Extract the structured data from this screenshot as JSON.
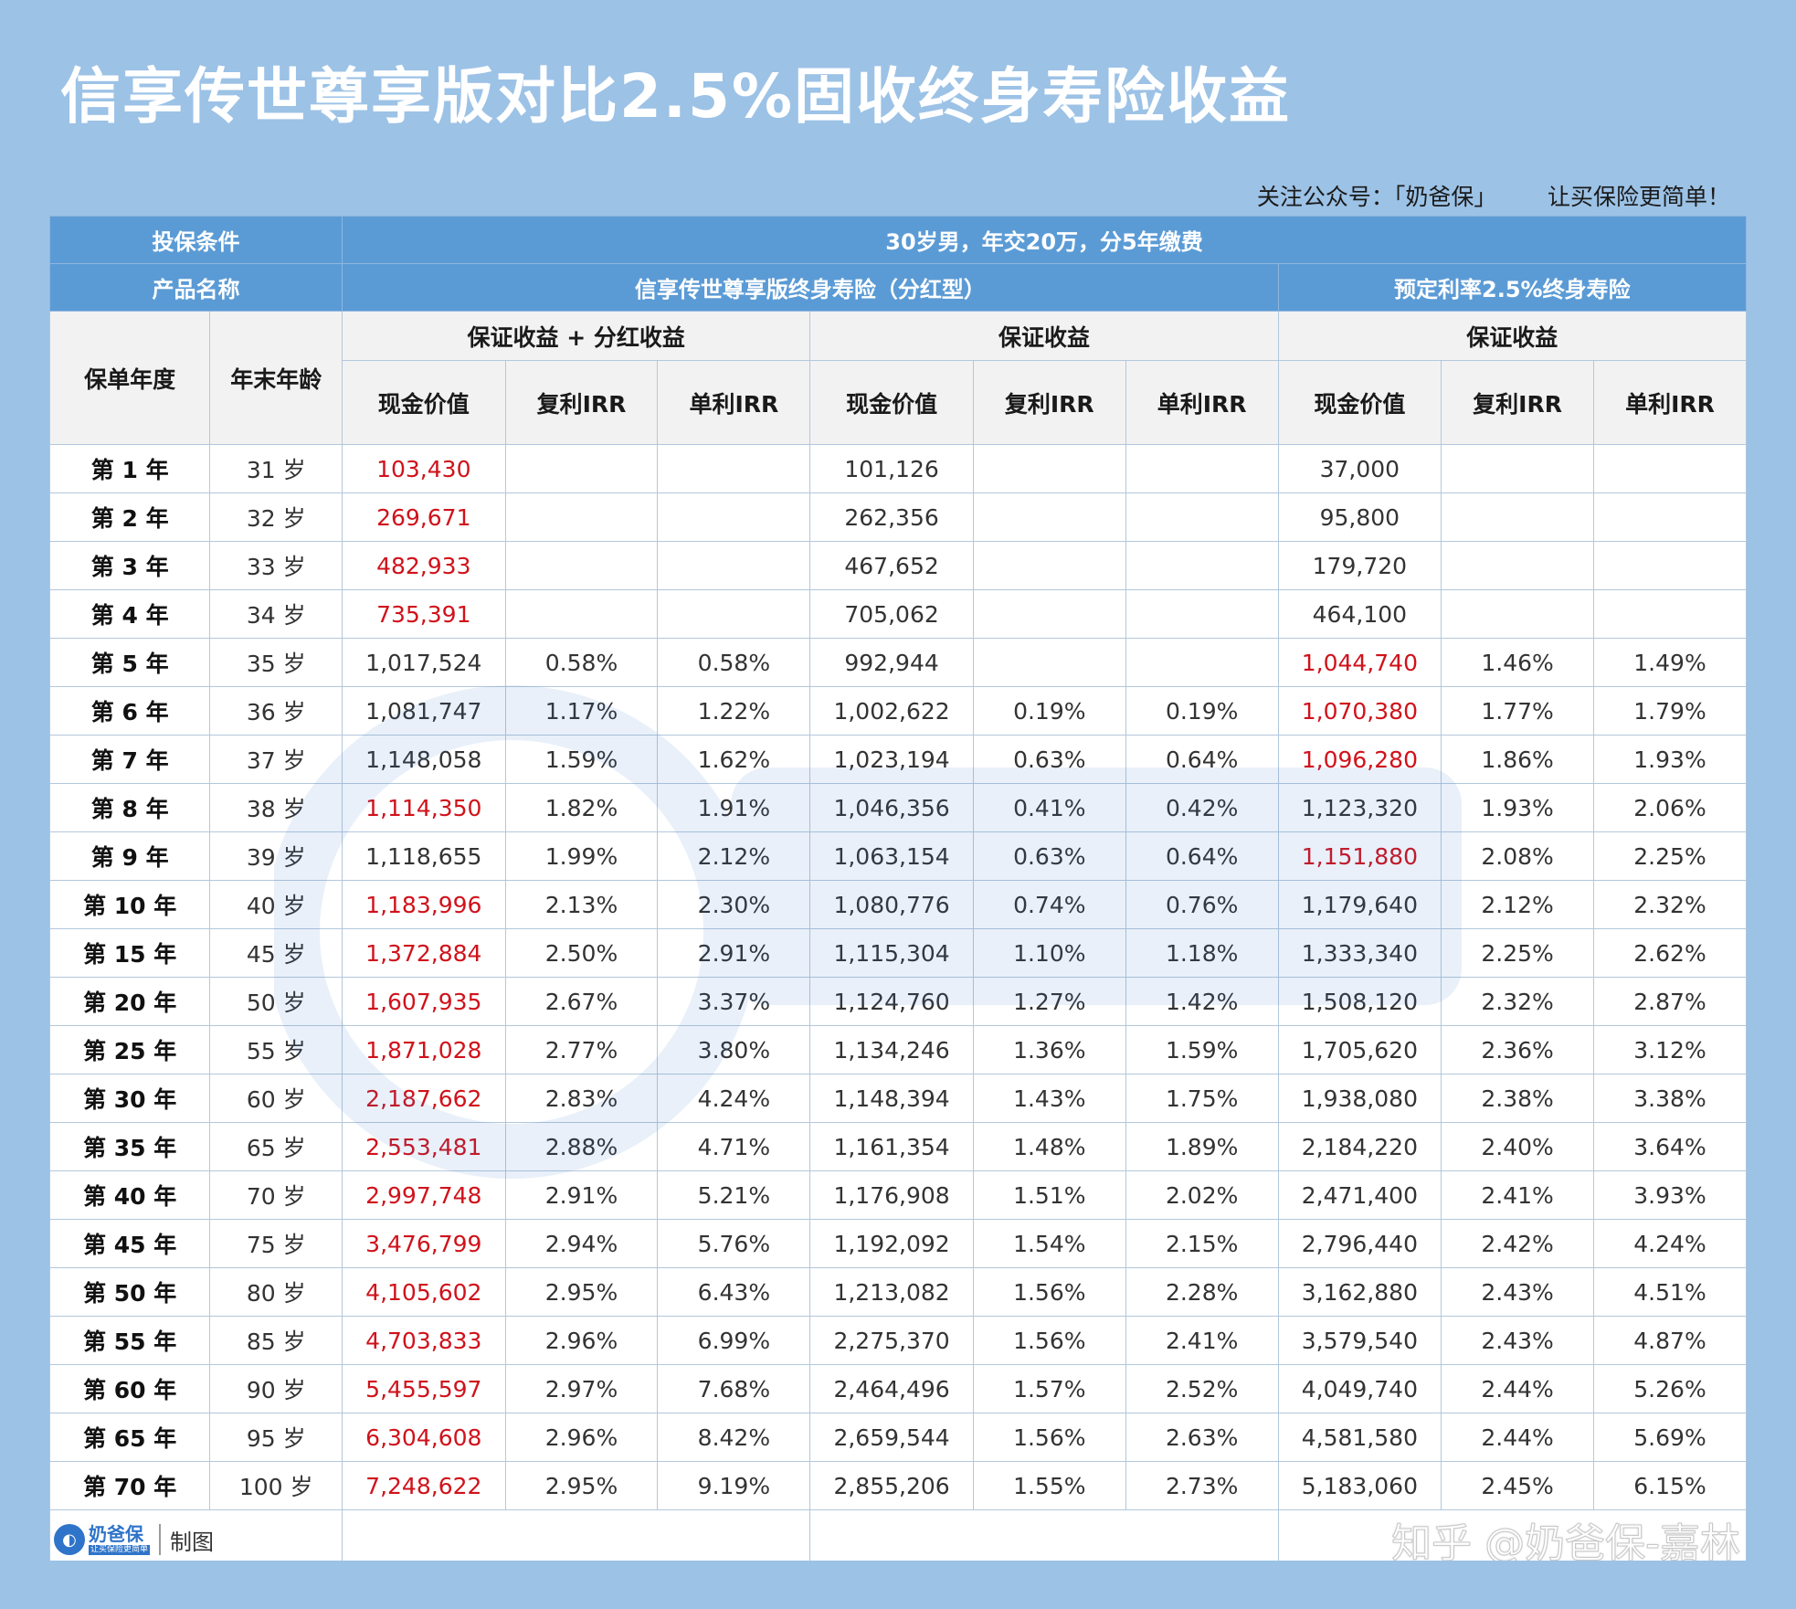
{
  "title": "信享传世尊享版对比2.5%固收终身寿险收益",
  "follow_text": "关注公众号：「奶爸保」       让买保险更简单！",
  "header": {
    "condition_label": "投保条件",
    "condition_value": "30岁男，年交20万，分5年缴费",
    "product_label": "产品名称",
    "product_a": "信享传世尊享版终身寿险（分红型）",
    "product_b": "预定利率2.5%终身寿险",
    "year_label": "保单年度",
    "age_label": "年末年龄",
    "group_a1": "保证收益 + 分红收益",
    "group_a2": "保证收益",
    "group_b": "保证收益",
    "cash_value": "现金价值",
    "compound_irr": "复利IRR",
    "simple_irr": "单利IRR"
  },
  "rows": [
    {
      "year": "第 1 年",
      "age": "31 岁",
      "a_cv": "103,430",
      "a_cv_red": true,
      "a_cirr": "",
      "a_sirr": "",
      "g_cv": "101,126",
      "g_cirr": "",
      "g_sirr": "",
      "b_cv": "37,000",
      "b_cv_red": false,
      "b_cirr": "",
      "b_sirr": ""
    },
    {
      "year": "第 2 年",
      "age": "32 岁",
      "a_cv": "269,671",
      "a_cv_red": true,
      "a_cirr": "",
      "a_sirr": "",
      "g_cv": "262,356",
      "g_cirr": "",
      "g_sirr": "",
      "b_cv": "95,800",
      "b_cv_red": false,
      "b_cirr": "",
      "b_sirr": ""
    },
    {
      "year": "第 3 年",
      "age": "33 岁",
      "a_cv": "482,933",
      "a_cv_red": true,
      "a_cirr": "",
      "a_sirr": "",
      "g_cv": "467,652",
      "g_cirr": "",
      "g_sirr": "",
      "b_cv": "179,720",
      "b_cv_red": false,
      "b_cirr": "",
      "b_sirr": ""
    },
    {
      "year": "第 4 年",
      "age": "34 岁",
      "a_cv": "735,391",
      "a_cv_red": true,
      "a_cirr": "",
      "a_sirr": "",
      "g_cv": "705,062",
      "g_cirr": "",
      "g_sirr": "",
      "b_cv": "464,100",
      "b_cv_red": false,
      "b_cirr": "",
      "b_sirr": ""
    },
    {
      "year": "第 5 年",
      "age": "35 岁",
      "a_cv": "1,017,524",
      "a_cv_red": false,
      "a_cirr": "0.58%",
      "a_sirr": "0.58%",
      "g_cv": "992,944",
      "g_cirr": "",
      "g_sirr": "",
      "b_cv": "1,044,740",
      "b_cv_red": true,
      "b_cirr": "1.46%",
      "b_sirr": "1.49%"
    },
    {
      "year": "第 6 年",
      "age": "36 岁",
      "a_cv": "1,081,747",
      "a_cv_red": false,
      "a_cirr": "1.17%",
      "a_sirr": "1.22%",
      "g_cv": "1,002,622",
      "g_cirr": "0.19%",
      "g_sirr": "0.19%",
      "b_cv": "1,070,380",
      "b_cv_red": true,
      "b_cirr": "1.77%",
      "b_sirr": "1.79%"
    },
    {
      "year": "第 7 年",
      "age": "37 岁",
      "a_cv": "1,148,058",
      "a_cv_red": false,
      "a_cirr": "1.59%",
      "a_sirr": "1.62%",
      "g_cv": "1,023,194",
      "g_cirr": "0.63%",
      "g_sirr": "0.64%",
      "b_cv": "1,096,280",
      "b_cv_red": true,
      "b_cirr": "1.86%",
      "b_sirr": "1.93%"
    },
    {
      "year": "第 8 年",
      "age": "38 岁",
      "a_cv": "1,114,350",
      "a_cv_red": true,
      "a_cirr": "1.82%",
      "a_sirr": "1.91%",
      "g_cv": "1,046,356",
      "g_cirr": "0.41%",
      "g_sirr": "0.42%",
      "b_cv": "1,123,320",
      "b_cv_red": false,
      "b_cirr": "1.93%",
      "b_sirr": "2.06%"
    },
    {
      "year": "第 9 年",
      "age": "39 岁",
      "a_cv": "1,118,655",
      "a_cv_red": false,
      "a_cirr": "1.99%",
      "a_sirr": "2.12%",
      "g_cv": "1,063,154",
      "g_cirr": "0.63%",
      "g_sirr": "0.64%",
      "b_cv": "1,151,880",
      "b_cv_red": true,
      "b_cirr": "2.08%",
      "b_sirr": "2.25%"
    },
    {
      "year": "第 10 年",
      "age": "40 岁",
      "a_cv": "1,183,996",
      "a_cv_red": true,
      "a_cirr": "2.13%",
      "a_sirr": "2.30%",
      "g_cv": "1,080,776",
      "g_cirr": "0.74%",
      "g_sirr": "0.76%",
      "b_cv": "1,179,640",
      "b_cv_red": false,
      "b_cirr": "2.12%",
      "b_sirr": "2.32%"
    },
    {
      "year": "第 15 年",
      "age": "45 岁",
      "a_cv": "1,372,884",
      "a_cv_red": true,
      "a_cirr": "2.50%",
      "a_sirr": "2.91%",
      "g_cv": "1,115,304",
      "g_cirr": "1.10%",
      "g_sirr": "1.18%",
      "b_cv": "1,333,340",
      "b_cv_red": false,
      "b_cirr": "2.25%",
      "b_sirr": "2.62%"
    },
    {
      "year": "第 20 年",
      "age": "50 岁",
      "a_cv": "1,607,935",
      "a_cv_red": true,
      "a_cirr": "2.67%",
      "a_sirr": "3.37%",
      "g_cv": "1,124,760",
      "g_cirr": "1.27%",
      "g_sirr": "1.42%",
      "b_cv": "1,508,120",
      "b_cv_red": false,
      "b_cirr": "2.32%",
      "b_sirr": "2.87%"
    },
    {
      "year": "第 25 年",
      "age": "55 岁",
      "a_cv": "1,871,028",
      "a_cv_red": true,
      "a_cirr": "2.77%",
      "a_sirr": "3.80%",
      "g_cv": "1,134,246",
      "g_cirr": "1.36%",
      "g_sirr": "1.59%",
      "b_cv": "1,705,620",
      "b_cv_red": false,
      "b_cirr": "2.36%",
      "b_sirr": "3.12%"
    },
    {
      "year": "第 30 年",
      "age": "60 岁",
      "a_cv": "2,187,662",
      "a_cv_red": true,
      "a_cirr": "2.83%",
      "a_sirr": "4.24%",
      "g_cv": "1,148,394",
      "g_cirr": "1.43%",
      "g_sirr": "1.75%",
      "b_cv": "1,938,080",
      "b_cv_red": false,
      "b_cirr": "2.38%",
      "b_sirr": "3.38%"
    },
    {
      "year": "第 35 年",
      "age": "65 岁",
      "a_cv": "2,553,481",
      "a_cv_red": true,
      "a_cirr": "2.88%",
      "a_sirr": "4.71%",
      "g_cv": "1,161,354",
      "g_cirr": "1.48%",
      "g_sirr": "1.89%",
      "b_cv": "2,184,220",
      "b_cv_red": false,
      "b_cirr": "2.40%",
      "b_sirr": "3.64%"
    },
    {
      "year": "第 40 年",
      "age": "70 岁",
      "a_cv": "2,997,748",
      "a_cv_red": true,
      "a_cirr": "2.91%",
      "a_sirr": "5.21%",
      "g_cv": "1,176,908",
      "g_cirr": "1.51%",
      "g_sirr": "2.02%",
      "b_cv": "2,471,400",
      "b_cv_red": false,
      "b_cirr": "2.41%",
      "b_sirr": "3.93%"
    },
    {
      "year": "第 45 年",
      "age": "75 岁",
      "a_cv": "3,476,799",
      "a_cv_red": true,
      "a_cirr": "2.94%",
      "a_sirr": "5.76%",
      "g_cv": "1,192,092",
      "g_cirr": "1.54%",
      "g_sirr": "2.15%",
      "b_cv": "2,796,440",
      "b_cv_red": false,
      "b_cirr": "2.42%",
      "b_sirr": "4.24%"
    },
    {
      "year": "第 50 年",
      "age": "80 岁",
      "a_cv": "4,105,602",
      "a_cv_red": true,
      "a_cirr": "2.95%",
      "a_sirr": "6.43%",
      "g_cv": "1,213,082",
      "g_cirr": "1.56%",
      "g_sirr": "2.28%",
      "b_cv": "3,162,880",
      "b_cv_red": false,
      "b_cirr": "2.43%",
      "b_sirr": "4.51%"
    },
    {
      "year": "第 55 年",
      "age": "85 岁",
      "a_cv": "4,703,833",
      "a_cv_red": true,
      "a_cirr": "2.96%",
      "a_sirr": "6.99%",
      "g_cv": "2,275,370",
      "g_cirr": "1.56%",
      "g_sirr": "2.41%",
      "b_cv": "3,579,540",
      "b_cv_red": false,
      "b_cirr": "2.43%",
      "b_sirr": "4.87%"
    },
    {
      "year": "第 60 年",
      "age": "90 岁",
      "a_cv": "5,455,597",
      "a_cv_red": true,
      "a_cirr": "2.97%",
      "a_sirr": "7.68%",
      "g_cv": "2,464,496",
      "g_cirr": "1.57%",
      "g_sirr": "2.52%",
      "b_cv": "4,049,740",
      "b_cv_red": false,
      "b_cirr": "2.44%",
      "b_sirr": "5.26%"
    },
    {
      "year": "第 65 年",
      "age": "95 岁",
      "a_cv": "6,304,608",
      "a_cv_red": true,
      "a_cirr": "2.96%",
      "a_sirr": "8.42%",
      "g_cv": "2,659,544",
      "g_cirr": "1.56%",
      "g_sirr": "2.63%",
      "b_cv": "4,581,580",
      "b_cv_red": false,
      "b_cirr": "2.44%",
      "b_sirr": "5.69%"
    },
    {
      "year": "第 70 年",
      "age": "100 岁",
      "a_cv": "7,248,622",
      "a_cv_red": true,
      "a_cirr": "2.95%",
      "a_sirr": "9.19%",
      "g_cv": "2,855,206",
      "g_cirr": "1.55%",
      "g_sirr": "2.73%",
      "b_cv": "5,183,060",
      "b_cv_red": false,
      "b_cirr": "2.45%",
      "b_sirr": "6.15%"
    }
  ],
  "footer": {
    "logo_text": "奶爸保",
    "logo_sub": "让买保险更简单",
    "maker_label": "制图",
    "zhihu_watermark": "知乎 @奶爸保-嘉林"
  },
  "colors": {
    "background": "#9cc2e6",
    "header_blue": "#5b9bd5",
    "highlight_red": "#d0121b"
  }
}
